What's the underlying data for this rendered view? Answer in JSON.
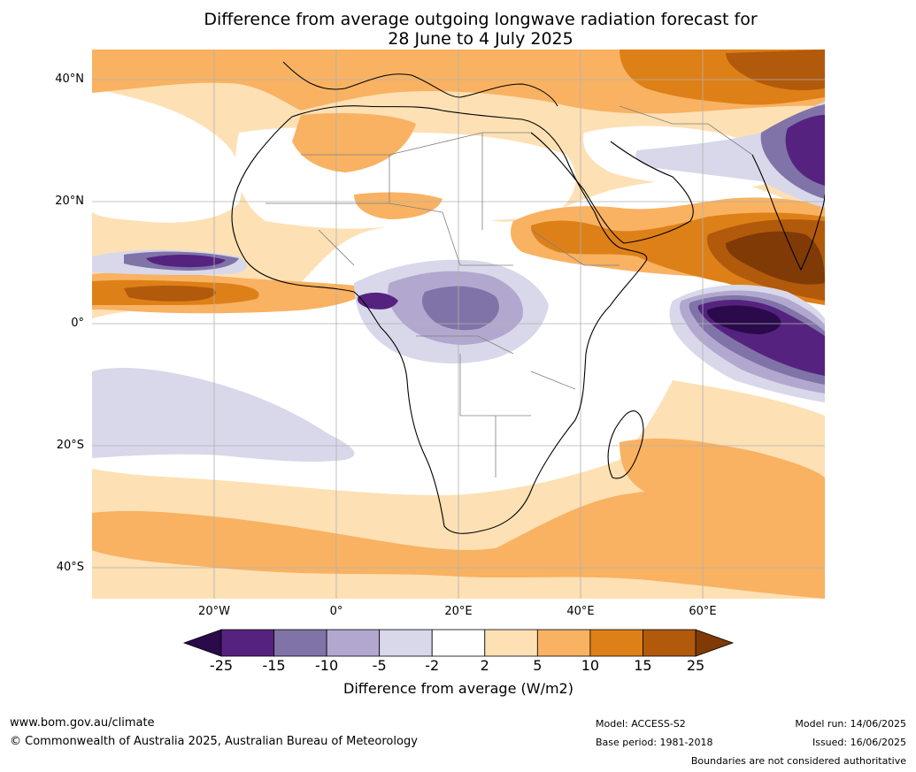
{
  "title": {
    "line1": "Difference from average outgoing longwave radiation forecast for",
    "line2": "28 June to 4 July 2025"
  },
  "map": {
    "lat_labels": [
      "40°N",
      "20°N",
      "0°",
      "20°S",
      "40°S"
    ],
    "lon_labels": [
      "20°W",
      "0°",
      "20°E",
      "40°E",
      "60°E"
    ],
    "extent": {
      "lon_min": -40,
      "lon_max": 80,
      "lat_min": -45,
      "lat_max": 45
    }
  },
  "colorbar": {
    "ticks": [
      "-25",
      "-15",
      "-10",
      "-5",
      "-2",
      "2",
      "5",
      "10",
      "15",
      "25"
    ],
    "colors": [
      "#2a0a4a",
      "#55237f",
      "#8073a8",
      "#b2a8cf",
      "#d8d8ea",
      "#ffffff",
      "#fde0b4",
      "#f8b262",
      "#de8018",
      "#b15a0c",
      "#7f3a06"
    ],
    "title": "Difference from average (W/m2)"
  },
  "footer": {
    "website": "www.bom.gov.au/climate",
    "copyright": "© Commonwealth of Australia 2025, Australian Bureau of Meteorology",
    "model": "Model: ACCESS-S2",
    "base_period": "Base period: 1981-2018",
    "model_run": "Model run: 14/06/2025",
    "issued": "Issued: 16/06/2025",
    "disclaimer": "Boundaries are not considered authoritative"
  }
}
